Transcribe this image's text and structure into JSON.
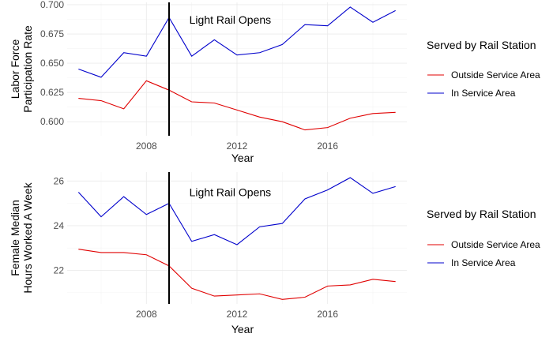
{
  "colors": {
    "outside": "#e00000",
    "inside": "#0000cc",
    "vline": "#000000"
  },
  "chart_data": [
    {
      "type": "line",
      "xlabel": "Year",
      "ylabel_lines": [
        "Labor Force",
        "Participation Rate"
      ],
      "xlim": [
        2004.5,
        2019.5
      ],
      "ylim": [
        0.588,
        0.702
      ],
      "xticks": [
        2008,
        2012,
        2016
      ],
      "yticks": [
        0.6,
        0.625,
        0.65,
        0.675,
        0.7
      ],
      "ytick_labels": [
        "0.600",
        "0.625",
        "0.650",
        "0.675",
        "0.700"
      ],
      "vline_x": 2009,
      "annotation": {
        "text": "Light Rail Opens",
        "x": 2011.7,
        "y": 0.687
      },
      "legend": {
        "title": "Served by Rail Station",
        "placement": "right"
      },
      "series": [
        {
          "name": "Outside Service Area",
          "color_key": "outside",
          "x": [
            2005,
            2006,
            2007,
            2008,
            2009,
            2010,
            2011,
            2012,
            2013,
            2014,
            2015,
            2016,
            2017,
            2018,
            2019
          ],
          "y": [
            0.62,
            0.618,
            0.611,
            0.635,
            0.627,
            0.617,
            0.616,
            0.61,
            0.604,
            0.6,
            0.593,
            0.595,
            0.603,
            0.607,
            0.608
          ]
        },
        {
          "name": "In Service Area",
          "color_key": "inside",
          "x": [
            2005,
            2006,
            2007,
            2008,
            2009,
            2010,
            2011,
            2012,
            2013,
            2014,
            2015,
            2016,
            2017,
            2018,
            2019
          ],
          "y": [
            0.645,
            0.638,
            0.659,
            0.656,
            0.689,
            0.656,
            0.67,
            0.657,
            0.659,
            0.666,
            0.683,
            0.682,
            0.698,
            0.685,
            0.695
          ]
        }
      ]
    },
    {
      "type": "line",
      "xlabel": "Year",
      "ylabel_lines": [
        "Female Median",
        "Hours Worked A Week"
      ],
      "xlim": [
        2004.5,
        2019.5
      ],
      "ylim": [
        20.5,
        26.4
      ],
      "xticks": [
        2008,
        2012,
        2016
      ],
      "yticks": [
        22,
        24,
        26
      ],
      "ytick_labels": [
        "22",
        "24",
        "26"
      ],
      "vline_x": 2009,
      "annotation": {
        "text": "Light Rail Opens",
        "x": 2011.7,
        "y": 25.5
      },
      "legend": {
        "title": "Served by Rail Station",
        "placement": "right"
      },
      "series": [
        {
          "name": "Outside Service Area",
          "color_key": "outside",
          "x": [
            2005,
            2006,
            2007,
            2008,
            2009,
            2010,
            2011,
            2012,
            2013,
            2014,
            2015,
            2016,
            2017,
            2018,
            2019
          ],
          "y": [
            22.95,
            22.8,
            22.8,
            22.7,
            22.2,
            21.2,
            20.85,
            20.9,
            20.95,
            20.7,
            20.8,
            21.3,
            21.35,
            21.6,
            21.5
          ]
        },
        {
          "name": "In Service Area",
          "color_key": "inside",
          "x": [
            2005,
            2006,
            2007,
            2008,
            2009,
            2010,
            2011,
            2012,
            2013,
            2014,
            2015,
            2016,
            2017,
            2018,
            2019
          ],
          "y": [
            25.5,
            24.4,
            25.3,
            24.5,
            25.0,
            23.3,
            23.6,
            23.15,
            23.95,
            24.1,
            25.2,
            25.6,
            26.15,
            25.45,
            25.75
          ]
        }
      ]
    }
  ]
}
